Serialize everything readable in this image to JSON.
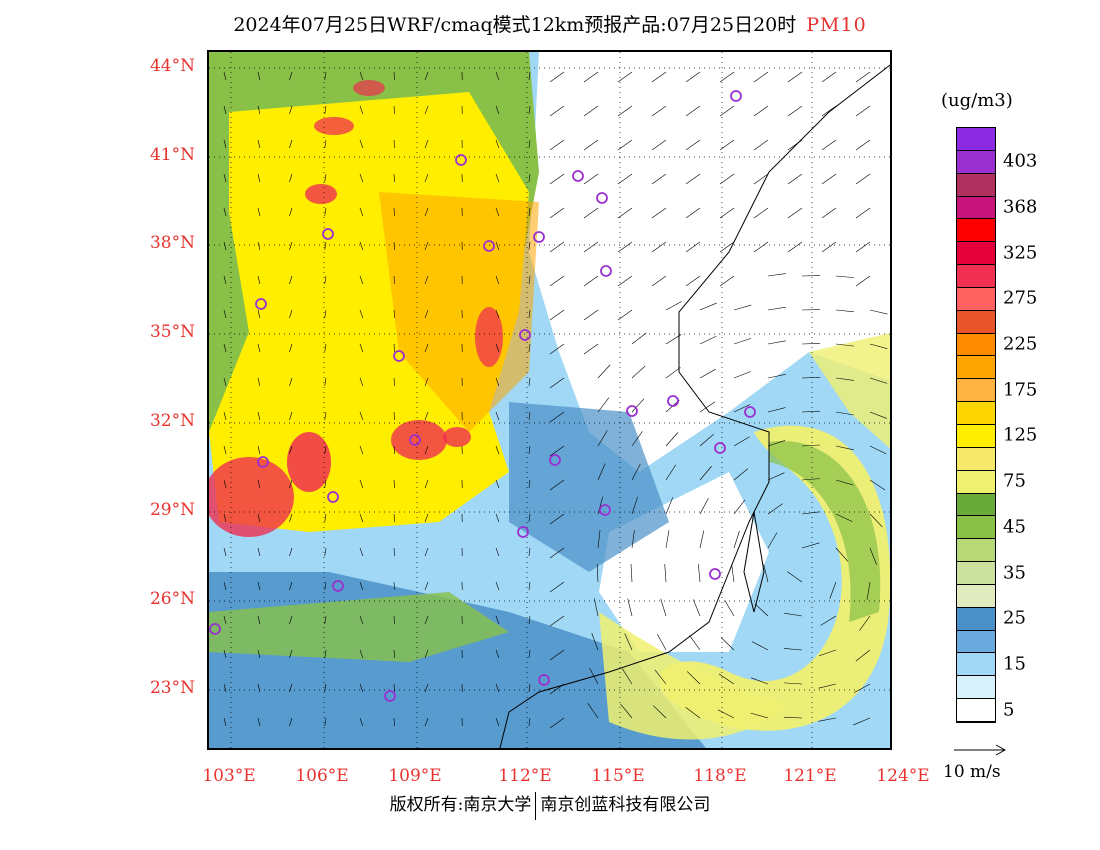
{
  "title": {
    "main": "2024年07月25日WRF/cmaq模式12km预报产品:07月25日20时",
    "variable": "PM10"
  },
  "latitude_labels": [
    "44°N",
    "41°N",
    "38°N",
    "35°N",
    "32°N",
    "29°N",
    "26°N",
    "23°N"
  ],
  "longitude_labels": [
    "103°E",
    "106°E",
    "109°E",
    "112°E",
    "115°E",
    "118°E",
    "121°E",
    "124°E"
  ],
  "legend": {
    "unit": "(ug/m3)",
    "levels": [
      {
        "color": "#8b2be2",
        "label": ""
      },
      {
        "color": "#9b30d0",
        "label": "403"
      },
      {
        "color": "#b03060",
        "label": ""
      },
      {
        "color": "#c8147a",
        "label": "368"
      },
      {
        "color": "#ff0000",
        "label": ""
      },
      {
        "color": "#e6003c",
        "label": "325"
      },
      {
        "color": "#f03050",
        "label": ""
      },
      {
        "color": "#ff6060",
        "label": "275"
      },
      {
        "color": "#e8552a",
        "label": ""
      },
      {
        "color": "#ff8c00",
        "label": "225"
      },
      {
        "color": "#ffa500",
        "label": ""
      },
      {
        "color": "#ffb340",
        "label": "175"
      },
      {
        "color": "#ffd700",
        "label": ""
      },
      {
        "color": "#ffee00",
        "label": "125"
      },
      {
        "color": "#f5e86a",
        "label": ""
      },
      {
        "color": "#f0f070",
        "label": "75"
      },
      {
        "color": "#6aaa3a",
        "label": ""
      },
      {
        "color": "#88c048",
        "label": "45"
      },
      {
        "color": "#b8d878",
        "label": ""
      },
      {
        "color": "#cce0a0",
        "label": "35"
      },
      {
        "color": "#e0ecc0",
        "label": ""
      },
      {
        "color": "#4a90c8",
        "label": "25"
      },
      {
        "color": "#6aaae0",
        "label": ""
      },
      {
        "color": "#a0d8f5",
        "label": "15"
      },
      {
        "color": "#d8f0fa",
        "label": ""
      },
      {
        "color": "#ffffff",
        "label": "5"
      }
    ]
  },
  "reference_vector": {
    "label": "10 m/s"
  },
  "copyright": {
    "left": "版权所有:南京大学",
    "right": "南京创蓝科技有限公司"
  },
  "monitoring_site_color": "#9b30d0",
  "pollution_field_colors": {
    "clean": "#ffffff",
    "low": "#a0d8f5",
    "mid": "#4a90c8",
    "green": "#88c048",
    "yellow": "#ffee00",
    "orange": "#ffa500",
    "red": "#f03050",
    "typhoon_band": "#f0f070"
  }
}
